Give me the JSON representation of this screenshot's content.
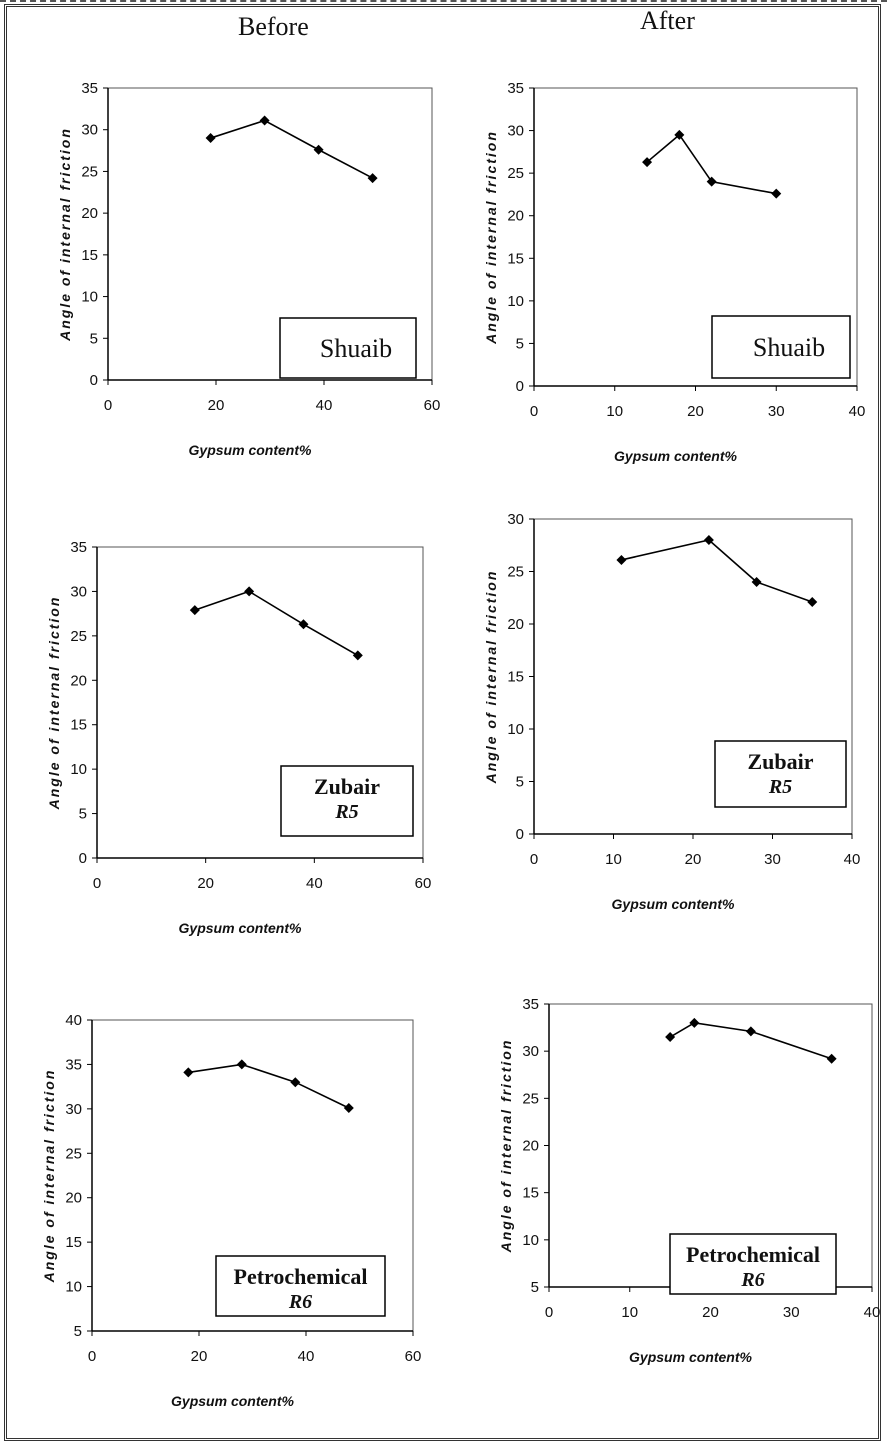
{
  "headings": {
    "before": "Before",
    "after": "After"
  },
  "chart_data": [
    {
      "id": "before-shuaib",
      "type": "line",
      "legend": "Shuaib",
      "legend_sub": "",
      "xlabel": "Gypsum content%",
      "ylabel": "Angle of internal friction",
      "xlim": [
        0,
        60
      ],
      "xticks": [
        0,
        20,
        40,
        60
      ],
      "ylim": [
        0,
        35
      ],
      "yticks": [
        0,
        5,
        10,
        15,
        20,
        25,
        30,
        35
      ],
      "series": [
        {
          "x": [
            19,
            29,
            39,
            49
          ],
          "y": [
            29,
            31.1,
            27.6,
            24.2
          ]
        }
      ]
    },
    {
      "id": "after-shuaib",
      "type": "line",
      "legend": "Shuaib",
      "legend_sub": "",
      "xlabel": "Gypsum content%",
      "ylabel": "Angle of internal friction",
      "xlim": [
        0,
        40
      ],
      "xticks": [
        0,
        10,
        20,
        30,
        40
      ],
      "ylim": [
        0,
        35
      ],
      "yticks": [
        0,
        5,
        10,
        15,
        20,
        25,
        30,
        35
      ],
      "series": [
        {
          "x": [
            14,
            18,
            22,
            30
          ],
          "y": [
            26.3,
            29.5,
            24,
            22.6
          ]
        }
      ]
    },
    {
      "id": "before-zubair",
      "type": "line",
      "legend": "Zubair",
      "legend_sub": "R5",
      "xlabel": "Gypsum content%",
      "ylabel": "Angle of internal friction",
      "xlim": [
        0,
        60
      ],
      "xticks": [
        0,
        20,
        40,
        60
      ],
      "ylim": [
        0,
        35
      ],
      "yticks": [
        0,
        5,
        10,
        15,
        20,
        25,
        30,
        35
      ],
      "series": [
        {
          "x": [
            18,
            28,
            38,
            48
          ],
          "y": [
            27.9,
            30,
            26.3,
            22.8
          ]
        }
      ]
    },
    {
      "id": "after-zubair",
      "type": "line",
      "legend": "Zubair",
      "legend_sub": "R5",
      "xlabel": "Gypsum content%",
      "ylabel": "Angle of internal friction",
      "xlim": [
        0,
        40
      ],
      "xticks": [
        0,
        10,
        20,
        30,
        40
      ],
      "ylim": [
        0,
        30
      ],
      "yticks": [
        0,
        5,
        10,
        15,
        20,
        25,
        30
      ],
      "series": [
        {
          "x": [
            11,
            22,
            28,
            35
          ],
          "y": [
            26.1,
            28,
            24,
            22.1
          ]
        }
      ]
    },
    {
      "id": "before-petrochemical",
      "type": "line",
      "legend": "Petrochemical",
      "legend_sub": "R6",
      "xlabel": "Gypsum content%",
      "ylabel": "Angle of internal friction",
      "xlim": [
        0,
        60
      ],
      "xticks": [
        0,
        20,
        40,
        60
      ],
      "ylim": [
        5,
        40
      ],
      "yticks": [
        5,
        10,
        15,
        20,
        25,
        30,
        35,
        40
      ],
      "series": [
        {
          "x": [
            18,
            28,
            38,
            48
          ],
          "y": [
            34.1,
            35,
            33,
            30.1
          ]
        }
      ]
    },
    {
      "id": "after-petrochemical",
      "type": "line",
      "legend": "Petrochemical",
      "legend_sub": "R6",
      "xlabel": "Gypsum content%",
      "ylabel": "Angle of internal friction",
      "xlim": [
        0,
        40
      ],
      "xticks": [
        0,
        10,
        20,
        30,
        40
      ],
      "ylim": [
        5,
        35
      ],
      "yticks": [
        5,
        10,
        15,
        20,
        25,
        30,
        35
      ],
      "series": [
        {
          "x": [
            15,
            18,
            25,
            35
          ],
          "y": [
            31.5,
            33,
            32.1,
            29.2
          ]
        }
      ]
    }
  ]
}
